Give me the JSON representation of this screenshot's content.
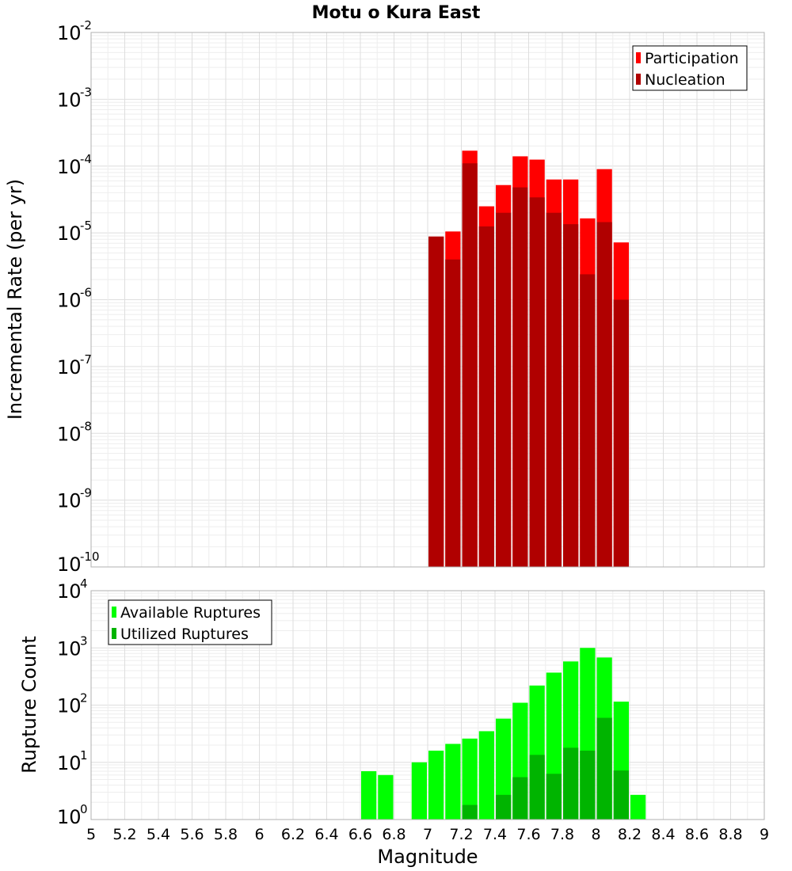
{
  "chart_data": [
    {
      "type": "bar",
      "title": "Motu o Kura East",
      "xlabel": "",
      "ylabel": "Incremental Rate (per yr)",
      "yscale": "log",
      "ylim_exp": [
        -10,
        -2
      ],
      "xlim": [
        5,
        9
      ],
      "bar_width": 0.1,
      "grid": true,
      "legend_position": "top-right",
      "series": [
        {
          "name": "Participation",
          "color": "#ff0000",
          "x": [
            7.0,
            7.1,
            7.2,
            7.3,
            7.4,
            7.5,
            7.6,
            7.7,
            7.8,
            7.9,
            8.0,
            8.1
          ],
          "values": [
            8.8e-06,
            1.05e-05,
            0.00017,
            2.5e-05,
            5.2e-05,
            0.00014,
            0.000125,
            6.3e-05,
            6.3e-05,
            1.65e-05,
            9e-05,
            7.2e-06
          ]
        },
        {
          "name": "Nucleation",
          "color": "#b00000",
          "x": [
            7.0,
            7.1,
            7.2,
            7.3,
            7.4,
            7.5,
            7.6,
            7.7,
            7.8,
            7.9,
            8.0,
            8.1
          ],
          "values": [
            8.8e-06,
            4e-06,
            0.00011,
            1.25e-05,
            2e-05,
            4.8e-05,
            3.4e-05,
            2e-05,
            1.35e-05,
            2.4e-06,
            1.45e-05,
            1e-06
          ]
        }
      ]
    },
    {
      "type": "bar",
      "title": "",
      "xlabel": "Magnitude",
      "ylabel": "Rupture Count",
      "yscale": "log",
      "ylim_exp": [
        0,
        4
      ],
      "xlim": [
        5,
        9
      ],
      "bar_width": 0.1,
      "grid": true,
      "legend_position": "top-left",
      "x_ticks": [
        "5",
        "5.2",
        "5.4",
        "5.6",
        "5.8",
        "6",
        "6.2",
        "6.4",
        "6.6",
        "6.8",
        "7",
        "7.2",
        "7.4",
        "7.6",
        "7.8",
        "8",
        "8.2",
        "8.4",
        "8.6",
        "8.8",
        "9"
      ],
      "series": [
        {
          "name": "Available Ruptures",
          "color": "#00ff00",
          "x": [
            6.6,
            6.7,
            6.9,
            7.0,
            7.1,
            7.2,
            7.3,
            7.4,
            7.5,
            7.6,
            7.7,
            7.8,
            7.9,
            8.0,
            8.1,
            8.2
          ],
          "values": [
            7,
            6,
            10,
            16,
            21,
            26,
            35,
            58,
            110,
            220,
            370,
            580,
            1000,
            680,
            115,
            2.7
          ]
        },
        {
          "name": "Utilized Ruptures",
          "color": "#00b400",
          "x": [
            6.9,
            7.0,
            7.1,
            7.2,
            7.3,
            7.4,
            7.5,
            7.6,
            7.7,
            7.8,
            7.9,
            8.0,
            8.1
          ],
          "values": [
            1,
            1,
            1,
            1.8,
            1,
            2.7,
            5.5,
            13.5,
            6.3,
            18,
            16,
            60,
            7.2
          ]
        }
      ]
    }
  ]
}
